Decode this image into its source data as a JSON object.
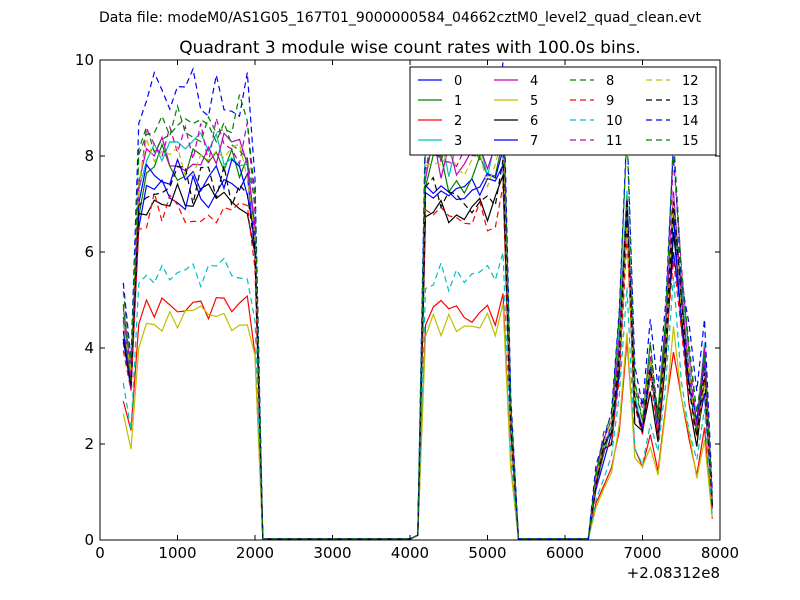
{
  "suptitle": "Data file: modeM0/AS1G05_167T01_9000000584_04662cztM0_level2_quad_clean.evt",
  "chart_data": {
    "type": "line",
    "title": "Quadrant 3 module wise count rates with 100.0s bins.",
    "xlabel": "",
    "ylabel": "",
    "xlim": [
      0,
      8000
    ],
    "ylim": [
      0,
      10
    ],
    "x_offset_label": "+2.08312e8",
    "xticks": [
      0,
      1000,
      2000,
      3000,
      4000,
      5000,
      6000,
      7000,
      8000
    ],
    "yticks": [
      0,
      2,
      4,
      6,
      8,
      10
    ],
    "grid": false,
    "legend_position": "top-right",
    "x": [
      300,
      400,
      500,
      600,
      700,
      800,
      900,
      1000,
      1100,
      1200,
      1300,
      1400,
      1500,
      1600,
      1700,
      1800,
      1900,
      2000,
      2100,
      2200,
      2300,
      2400,
      2500,
      2600,
      2700,
      2800,
      2900,
      3000,
      3100,
      3200,
      3300,
      3400,
      3500,
      3600,
      3700,
      3800,
      3900,
      4000,
      4100,
      4200,
      4300,
      4400,
      4500,
      4600,
      4700,
      4800,
      4900,
      5000,
      5100,
      5200,
      5300,
      5400,
      5500,
      5600,
      5700,
      5800,
      5900,
      6000,
      6100,
      6200,
      6300,
      6400,
      6500,
      6600,
      6700,
      6800,
      6900,
      7000,
      7100,
      7200,
      7300,
      7400,
      7500,
      7600,
      7700,
      7800,
      7900
    ],
    "series": [
      {
        "name": "0",
        "color": "#0000ff",
        "dash": "solid",
        "base": 7.3,
        "tail": 6.5
      },
      {
        "name": "1",
        "color": "#008000",
        "dash": "solid",
        "base": 7.8,
        "tail": 6.9
      },
      {
        "name": "2",
        "color": "#ff0000",
        "dash": "solid",
        "base": 4.8,
        "tail": 4.3
      },
      {
        "name": "3",
        "color": "#00bfbf",
        "dash": "solid",
        "base": 8.2,
        "tail": 7.3
      },
      {
        "name": "4",
        "color": "#bf00bf",
        "dash": "solid",
        "base": 8.1,
        "tail": 7.2
      },
      {
        "name": "5",
        "color": "#bfbf00",
        "dash": "solid",
        "base": 4.6,
        "tail": 4.1
      },
      {
        "name": "6",
        "color": "#000000",
        "dash": "solid",
        "base": 7.1,
        "tail": 6.3
      },
      {
        "name": "7",
        "color": "#0000ff",
        "dash": "solid",
        "base": 7.6,
        "tail": 6.8
      },
      {
        "name": "8",
        "color": "#008000",
        "dash": "dashed",
        "base": 8.4,
        "tail": 7.5
      },
      {
        "name": "9",
        "color": "#ff0000",
        "dash": "dashed",
        "base": 6.9,
        "tail": 6.1
      },
      {
        "name": "10",
        "color": "#00bfbf",
        "dash": "dashed",
        "base": 5.6,
        "tail": 5.0
      },
      {
        "name": "11",
        "color": "#bf00bf",
        "dash": "dashed",
        "base": 8.3,
        "tail": 7.4
      },
      {
        "name": "12",
        "color": "#bfbf00",
        "dash": "dashed",
        "base": 7.9,
        "tail": 7.0
      },
      {
        "name": "13",
        "color": "#000000",
        "dash": "dashed",
        "base": 7.4,
        "tail": 6.6
      },
      {
        "name": "14",
        "color": "#0000ff",
        "dash": "dashed",
        "base": 9.3,
        "tail": 8.3
      },
      {
        "name": "15",
        "color": "#008000",
        "dash": "dashed",
        "base": 8.8,
        "tail": 7.8
      }
    ]
  }
}
